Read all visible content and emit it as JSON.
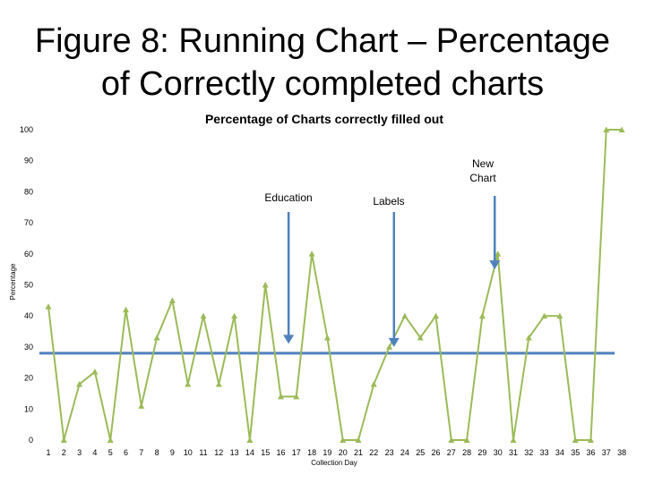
{
  "slide": {
    "title_line1": "Figure 8: Running Chart – Percentage",
    "title_line2": "of Correctly completed charts"
  },
  "chart_data": {
    "type": "line",
    "title": "Percentage of Charts correctly filled out",
    "xlabel": "Collection Day",
    "ylabel": "Percentage",
    "ylim": [
      0,
      100
    ],
    "yticks": [
      0,
      10,
      20,
      30,
      40,
      50,
      60,
      70,
      80,
      90,
      100
    ],
    "x": [
      1,
      2,
      3,
      4,
      5,
      6,
      7,
      8,
      9,
      10,
      11,
      12,
      13,
      14,
      15,
      16,
      17,
      18,
      19,
      20,
      21,
      22,
      23,
      24,
      25,
      26,
      27,
      28,
      29,
      30,
      31,
      32,
      33,
      34,
      35,
      36,
      37,
      38
    ],
    "series": [
      {
        "values": [
          43,
          0,
          18,
          22,
          0,
          42,
          11,
          33,
          45,
          18,
          40,
          18,
          40,
          0,
          50,
          14,
          14,
          60,
          33,
          0,
          0,
          18,
          30,
          40,
          33,
          40,
          0,
          0,
          40,
          60,
          0,
          33,
          40,
          40,
          0,
          0,
          100,
          100
        ],
        "color": "#9bbb59"
      }
    ],
    "reference_line": {
      "value": 28,
      "color": "#4f81bd"
    },
    "annotations": [
      {
        "text": "Education",
        "arrow_x": 16.5,
        "arrow_y": 31
      },
      {
        "text": "Labels",
        "arrow_x": 23.3,
        "arrow_y": 30
      },
      {
        "text": "New Chart",
        "lines": [
          "New",
          "Chart"
        ],
        "arrow_x": 29.8,
        "arrow_y": 55
      }
    ],
    "grid": false,
    "legend": "none"
  }
}
